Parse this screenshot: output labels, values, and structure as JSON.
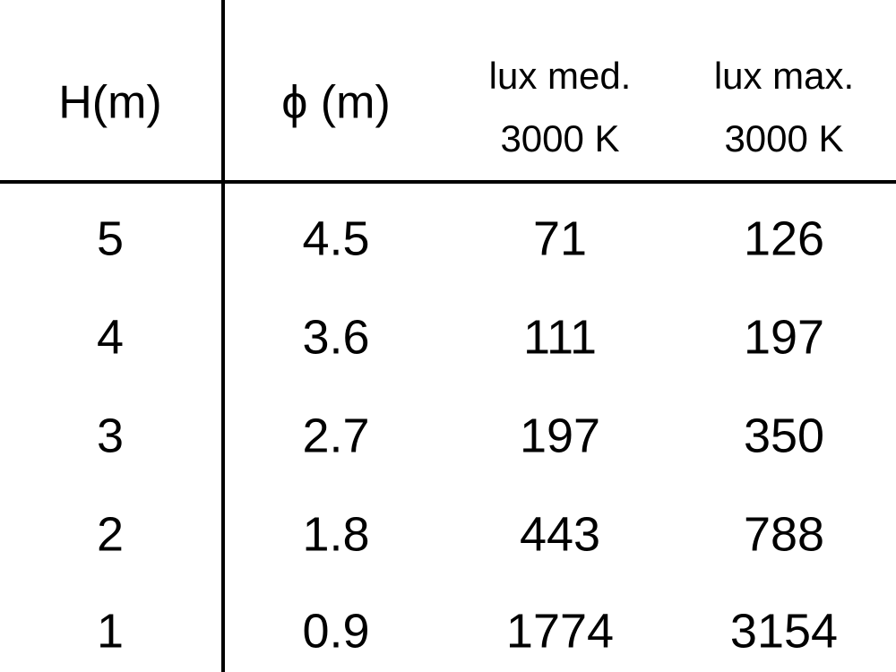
{
  "table": {
    "header": [
      [
        "H(m)"
      ],
      [
        "ϕ (m)"
      ],
      [
        "lux med.",
        "3000 K"
      ],
      [
        "lux max.",
        "3000 K"
      ]
    ],
    "rows": [
      [
        5,
        4.5,
        71,
        126
      ],
      [
        4,
        3.6,
        111,
        197
      ],
      [
        3,
        2.7,
        197,
        350
      ],
      [
        2,
        1.8,
        443,
        788
      ],
      [
        1,
        0.9,
        1774,
        3154
      ]
    ]
  }
}
